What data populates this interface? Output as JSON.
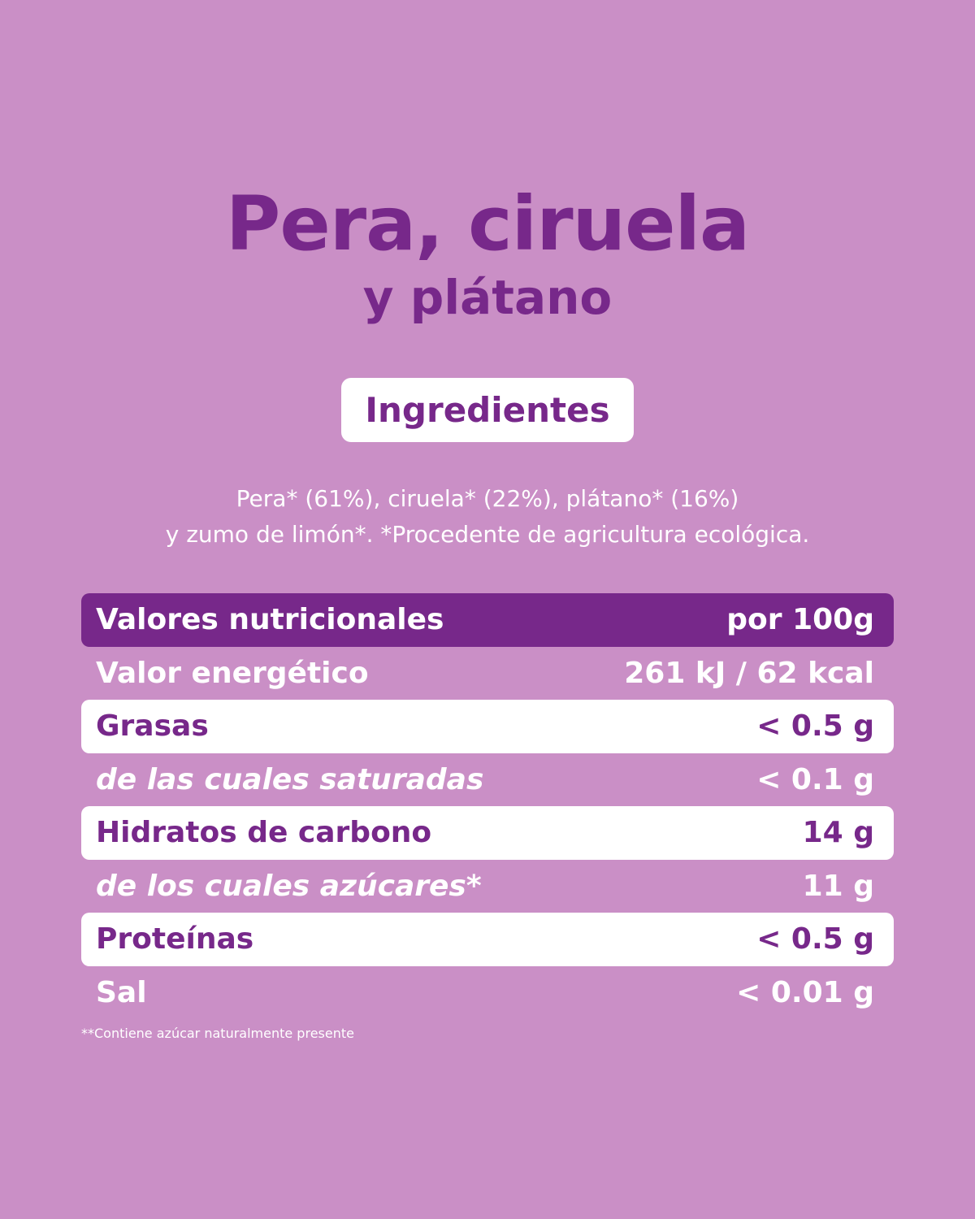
{
  "title": {
    "line1": "Pera, ciruela",
    "line2": "y plátano"
  },
  "ingredients": {
    "heading": "Ingredientes",
    "lines": [
      "Pera* (61%), ciruela* (22%), plátano* (16%)",
      "y zumo de limón*. *Procedente de agricultura ecológica."
    ]
  },
  "table": {
    "header": [
      "Valores nutricionales",
      "por 100g"
    ],
    "rows": [
      [
        "Valor energético",
        "261 kJ / 62 kcal"
      ],
      [
        "Grasas",
        "< 0.5 g"
      ],
      [
        "de las cuales saturadas",
        "< 0.1 g"
      ],
      [
        "Hidratos de carbono",
        "14 g"
      ],
      [
        "de los cuales azúcares*",
        "11 g"
      ],
      [
        "Proteínas",
        "< 0.5 g"
      ],
      [
        "Sal",
        "< 0.01 g"
      ]
    ]
  },
  "footnote": "**Contiene azúcar naturalmente presente"
}
